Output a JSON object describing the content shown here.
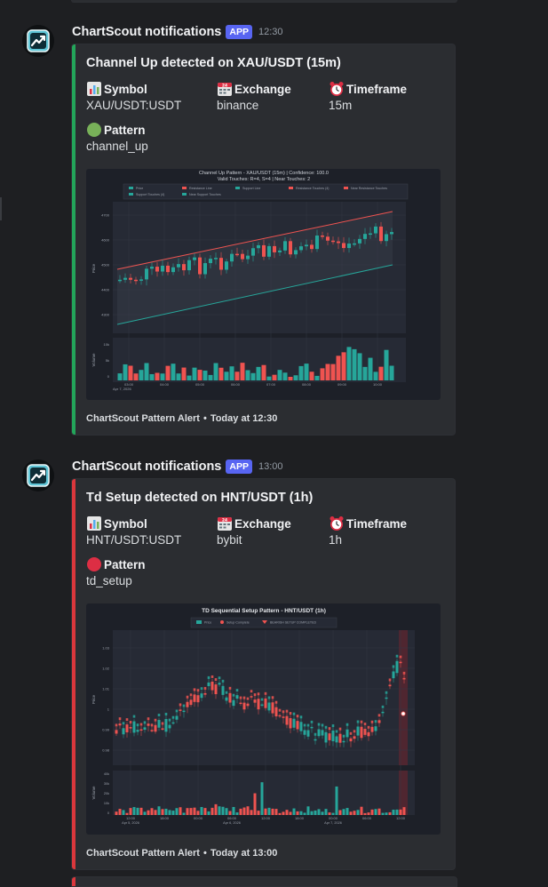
{
  "messages": [
    {
      "username": "ChartScout notifications",
      "badge": "APP",
      "time": "12:30",
      "accent": "#23a55a",
      "title": "Channel Up detected on XAU/USDT (15m)",
      "fields": {
        "symbol": {
          "name": "Symbol",
          "value": "XAU/USDT:USDT"
        },
        "exchange": {
          "name": "Exchange",
          "value": "binance"
        },
        "timeframe": {
          "name": "Timeframe",
          "value": "15m"
        },
        "pattern": {
          "name": "Pattern",
          "value": "channel_up",
          "icon": "green-circle-icon"
        }
      },
      "chart": {
        "title": "Channel Up Pattern - XAU/USDT (15m) | Confidence: 100.0",
        "subtitle": "Valid Touches: R=4, S=4 | Near Touches: 2",
        "legend": [
          "Price",
          "Resistance Line",
          "Support Line",
          "Resistance Touches (4)",
          "Near Resistance Touches",
          "Support Touches (4)",
          "Near Support Touches"
        ],
        "y_ticks": [
          "4700",
          "4600",
          "4500",
          "4400",
          "4300"
        ],
        "x_ticks": [
          "03:00",
          "04:00",
          "05:00",
          "06:00",
          "07:00",
          "08:00",
          "09:00",
          "10:00"
        ],
        "x_date": "Apr 7, 2026",
        "ylabel": "Price",
        "vol_label": "Volume",
        "vol_ticks": [
          "10k",
          "5k",
          "0"
        ]
      },
      "footer": {
        "text": "ChartScout Pattern Alert",
        "when": "Today at 12:30"
      }
    },
    {
      "username": "ChartScout notifications",
      "badge": "APP",
      "time": "13:00",
      "accent": "#da373c",
      "title": "Td Setup detected on HNT/USDT (1h)",
      "fields": {
        "symbol": {
          "name": "Symbol",
          "value": "HNT/USDT:USDT"
        },
        "exchange": {
          "name": "Exchange",
          "value": "bybit"
        },
        "timeframe": {
          "name": "Timeframe",
          "value": "1h"
        },
        "pattern": {
          "name": "Pattern",
          "value": "td_setup",
          "icon": "red-circle-icon"
        }
      },
      "chart": {
        "title": "TD Sequential Setup Pattern - HNT/USDT (1h)",
        "legend": [
          "Price",
          "Setup Complete",
          "BEARISH SETUP COMPLETED"
        ],
        "y_ticks": [
          "1.03",
          "1.02",
          "1.01",
          "1",
          "0.99",
          "0.98"
        ],
        "x_ticks": [
          "12:00",
          "18:00",
          "00:00",
          "06:00",
          "12:00",
          "18:00",
          "00:00",
          "06:00",
          "12:00"
        ],
        "x_dates": [
          "Apr 5, 2026",
          "Apr 6, 2026",
          "Apr 7, 2026"
        ],
        "ylabel": "Price",
        "vol_label": "Volume",
        "vol_ticks": [
          "40k",
          "30k",
          "20k",
          "10k",
          "0"
        ]
      },
      "footer": {
        "text": "ChartScout Pattern Alert",
        "when": "Today at 13:00"
      }
    }
  ]
}
